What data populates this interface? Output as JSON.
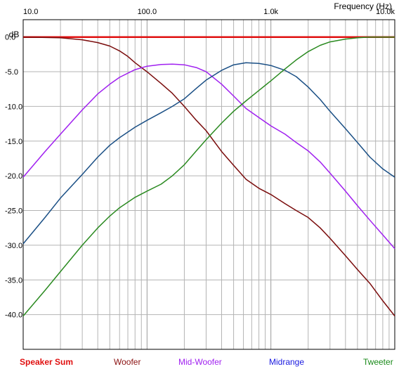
{
  "chart_data": {
    "type": "line",
    "title": "",
    "xlabel": "Frequency  (Hz)",
    "ylabel": "dB",
    "x_scale": "log",
    "xlim": [
      10,
      10000
    ],
    "ylim": [
      -45,
      2.5
    ],
    "grid": true,
    "legend_position": "bottom",
    "x_tick_labels": [
      "10.0",
      "100.0",
      "1.0k",
      "10.0k"
    ],
    "x_ticks": [
      10,
      100,
      1000,
      10000
    ],
    "y_ticks": [
      0,
      -5,
      -10,
      -15,
      -20,
      -25,
      -30,
      -35,
      -40
    ],
    "y_tick_labels": [
      "0.0",
      "-5.0",
      "-10.0",
      "-15.0",
      "-20.0",
      "-25.0",
      "-30.0",
      "-35.0",
      "-40.0"
    ],
    "series": [
      {
        "name": "Speaker Sum",
        "color": "#e01010",
        "points": [
          [
            10,
            0
          ],
          [
            10000,
            0
          ]
        ]
      },
      {
        "name": "Woofer",
        "color": "#7a0c0c",
        "points": [
          [
            10,
            0
          ],
          [
            20,
            -0.1
          ],
          [
            30,
            -0.4
          ],
          [
            40,
            -0.8
          ],
          [
            50,
            -1.3
          ],
          [
            60,
            -2.0
          ],
          [
            70,
            -2.8
          ],
          [
            80,
            -3.7
          ],
          [
            100,
            -5.0
          ],
          [
            130,
            -6.7
          ],
          [
            160,
            -8.1
          ],
          [
            200,
            -10.0
          ],
          [
            250,
            -12.0
          ],
          [
            300,
            -13.5
          ],
          [
            400,
            -16.5
          ],
          [
            500,
            -18.5
          ],
          [
            630,
            -20.5
          ],
          [
            800,
            -21.8
          ],
          [
            1000,
            -22.7
          ],
          [
            1300,
            -24.0
          ],
          [
            1600,
            -25.0
          ],
          [
            2000,
            -26.0
          ],
          [
            2500,
            -27.5
          ],
          [
            3000,
            -29.0
          ],
          [
            4000,
            -31.5
          ],
          [
            5000,
            -33.5
          ],
          [
            6300,
            -35.5
          ],
          [
            8000,
            -38.0
          ],
          [
            10000,
            -40.2
          ]
        ]
      },
      {
        "name": "Mid-Woofer",
        "color": "#a020f0",
        "points": [
          [
            10,
            -20.2
          ],
          [
            15,
            -16.5
          ],
          [
            20,
            -14.0
          ],
          [
            30,
            -10.5
          ],
          [
            40,
            -8.2
          ],
          [
            50,
            -6.8
          ],
          [
            60,
            -5.8
          ],
          [
            80,
            -4.7
          ],
          [
            100,
            -4.2
          ],
          [
            130,
            -3.95
          ],
          [
            160,
            -3.9
          ],
          [
            200,
            -4.0
          ],
          [
            250,
            -4.4
          ],
          [
            300,
            -5.0
          ],
          [
            400,
            -6.8
          ],
          [
            500,
            -8.5
          ],
          [
            630,
            -10.3
          ],
          [
            800,
            -11.6
          ],
          [
            1000,
            -12.8
          ],
          [
            1300,
            -14.0
          ],
          [
            1600,
            -15.2
          ],
          [
            2000,
            -16.4
          ],
          [
            2500,
            -18.0
          ],
          [
            3000,
            -19.6
          ],
          [
            4000,
            -22.2
          ],
          [
            5000,
            -24.3
          ],
          [
            6300,
            -26.4
          ],
          [
            8000,
            -28.5
          ],
          [
            10000,
            -30.5
          ]
        ]
      },
      {
        "name": "Midrange",
        "color": "#1a4f85",
        "points": [
          [
            10,
            -29.8
          ],
          [
            15,
            -26.0
          ],
          [
            20,
            -23.2
          ],
          [
            30,
            -19.8
          ],
          [
            40,
            -17.3
          ],
          [
            50,
            -15.6
          ],
          [
            60,
            -14.5
          ],
          [
            80,
            -13.0
          ],
          [
            100,
            -12.0
          ],
          [
            130,
            -10.9
          ],
          [
            160,
            -10.0
          ],
          [
            200,
            -8.9
          ],
          [
            250,
            -7.4
          ],
          [
            300,
            -6.2
          ],
          [
            400,
            -4.8
          ],
          [
            500,
            -4.0
          ],
          [
            630,
            -3.7
          ],
          [
            800,
            -3.8
          ],
          [
            1000,
            -4.1
          ],
          [
            1300,
            -4.8
          ],
          [
            1600,
            -5.7
          ],
          [
            2000,
            -7.2
          ],
          [
            2500,
            -9.0
          ],
          [
            3000,
            -10.7
          ],
          [
            4000,
            -13.2
          ],
          [
            5000,
            -15.2
          ],
          [
            6300,
            -17.3
          ],
          [
            8000,
            -19.0
          ],
          [
            10000,
            -20.2
          ]
        ]
      },
      {
        "name": "Tweeter",
        "color": "#2a8a20",
        "points": [
          [
            10,
            -40.2
          ],
          [
            15,
            -36.5
          ],
          [
            20,
            -33.8
          ],
          [
            30,
            -30.0
          ],
          [
            40,
            -27.5
          ],
          [
            50,
            -25.8
          ],
          [
            60,
            -24.6
          ],
          [
            80,
            -23.1
          ],
          [
            100,
            -22.2
          ],
          [
            130,
            -21.2
          ],
          [
            160,
            -20.0
          ],
          [
            200,
            -18.4
          ],
          [
            250,
            -16.4
          ],
          [
            300,
            -14.8
          ],
          [
            400,
            -12.4
          ],
          [
            500,
            -10.7
          ],
          [
            630,
            -9.2
          ],
          [
            800,
            -7.7
          ],
          [
            1000,
            -6.3
          ],
          [
            1300,
            -4.6
          ],
          [
            1600,
            -3.3
          ],
          [
            2000,
            -2.1
          ],
          [
            2500,
            -1.2
          ],
          [
            3000,
            -0.7
          ],
          [
            4000,
            -0.3
          ],
          [
            5000,
            -0.1
          ],
          [
            6300,
            0
          ],
          [
            8000,
            0
          ],
          [
            10000,
            0
          ]
        ]
      }
    ]
  }
}
